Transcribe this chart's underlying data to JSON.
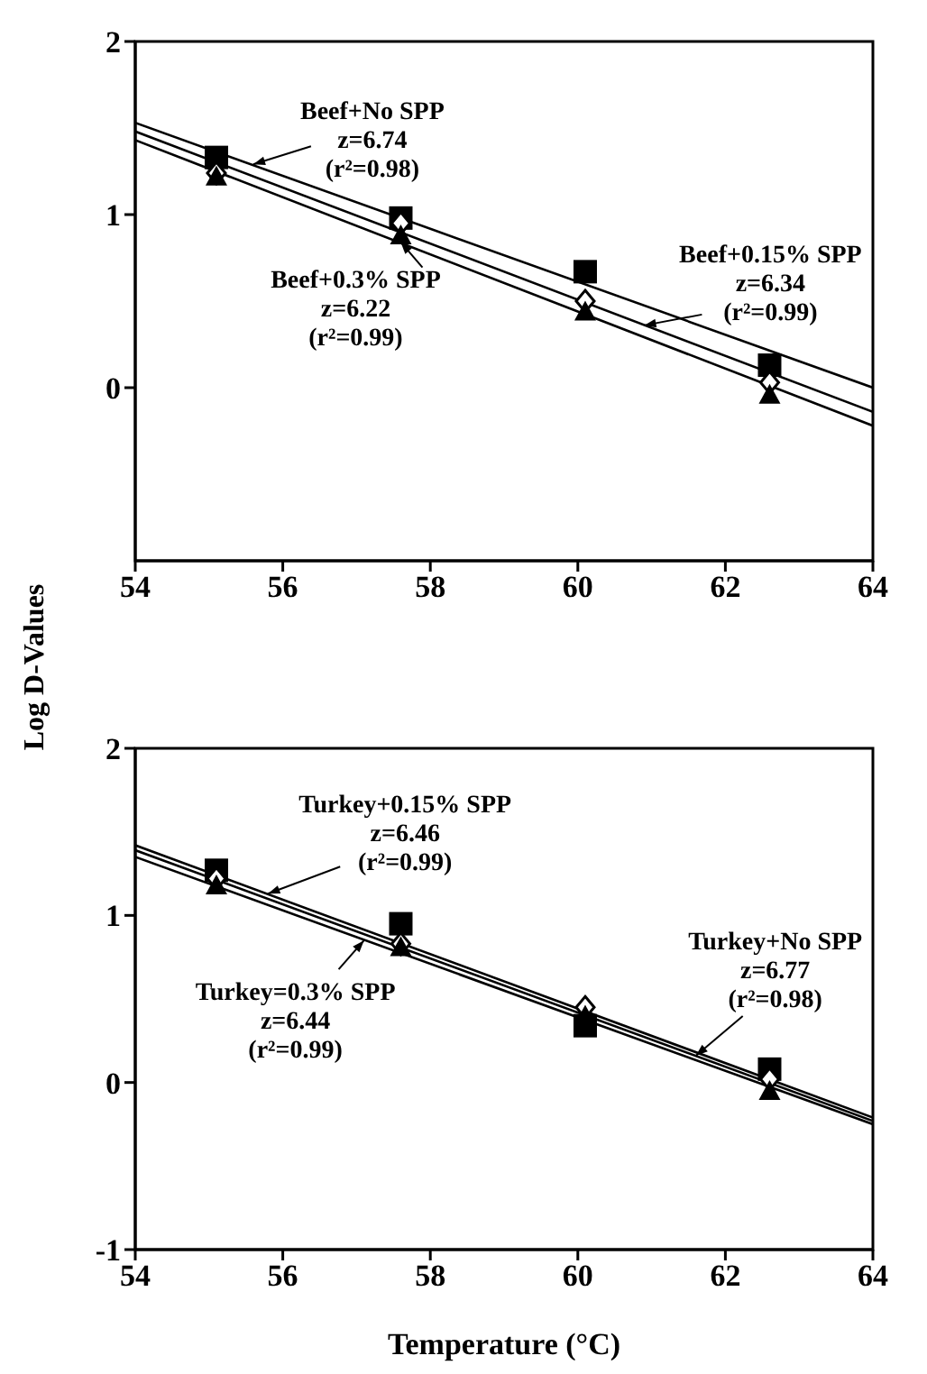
{
  "chart_data": [
    {
      "type": "scatter",
      "ylabel": "Log D-Values",
      "xlim": [
        54,
        64
      ],
      "xticks": [
        54,
        56,
        58,
        60,
        62,
        64
      ],
      "ylim": [
        -1,
        2
      ],
      "yticks": [
        0,
        1,
        2
      ],
      "series": [
        {
          "type": "scatter",
          "marker": "square",
          "color": "#000000",
          "x": [
            55.1,
            57.6,
            60.1,
            62.6
          ],
          "values": [
            1.33,
            0.98,
            0.67,
            0.13
          ]
        },
        {
          "type": "scatter",
          "marker": "diamond",
          "color": "#000000",
          "x": [
            55.1,
            57.6,
            60.1,
            62.6
          ],
          "values": [
            1.24,
            0.95,
            0.5,
            0.03
          ]
        },
        {
          "type": "scatter",
          "marker": "triangle",
          "color": "#000000",
          "x": [
            55.1,
            57.6,
            60.1,
            62.6
          ],
          "values": [
            1.22,
            0.88,
            0.44,
            -0.04
          ]
        },
        {
          "type": "line",
          "marker": "none",
          "color": "#000000",
          "x": [
            54,
            64
          ],
          "values": [
            1.53,
            0.0
          ]
        },
        {
          "type": "line",
          "marker": "none",
          "color": "#000000",
          "x": [
            54,
            64
          ],
          "values": [
            1.48,
            -0.14
          ]
        },
        {
          "type": "line",
          "marker": "none",
          "color": "#000000",
          "x": [
            54,
            64
          ],
          "values": [
            1.43,
            -0.22
          ]
        }
      ],
      "annotations": [
        {
          "text": "Beef+No SPP\nz=6.74\n(r²=0.98)",
          "x": 55.6,
          "y": 1.29
        },
        {
          "text": "Beef+0.3% SPP\nz=6.22\n(r²=0.99)",
          "x": 57.6,
          "y": 0.84
        },
        {
          "text": "Beef+0.15% SPP\nz=6.34\n(r²=0.99)",
          "x": 60.9,
          "y": 0.36
        }
      ]
    },
    {
      "type": "scatter",
      "xlabel": "Temperature (°C)",
      "xlim": [
        54,
        64
      ],
      "xticks": [
        54,
        56,
        58,
        60,
        62,
        64
      ],
      "ylim": [
        -1,
        2
      ],
      "yticks": [
        -1,
        0,
        1,
        2
      ],
      "series": [
        {
          "type": "scatter",
          "marker": "square",
          "color": "#000000",
          "x": [
            55.1,
            57.6,
            60.1,
            62.6
          ],
          "values": [
            1.27,
            0.95,
            0.34,
            0.08
          ]
        },
        {
          "type": "scatter",
          "marker": "diamond",
          "color": "#000000",
          "x": [
            55.1,
            57.6,
            60.1,
            62.6
          ],
          "values": [
            1.22,
            0.83,
            0.45,
            0.02
          ]
        },
        {
          "type": "scatter",
          "marker": "triangle",
          "color": "#000000",
          "x": [
            55.1,
            57.6,
            60.1,
            62.6
          ],
          "values": [
            1.18,
            0.81,
            0.4,
            -0.05
          ]
        },
        {
          "type": "line",
          "marker": "none",
          "color": "#000000",
          "x": [
            54,
            64
          ],
          "values": [
            1.42,
            -0.21
          ]
        },
        {
          "type": "line",
          "marker": "none",
          "color": "#000000",
          "x": [
            54,
            64
          ],
          "values": [
            1.39,
            -0.23
          ]
        },
        {
          "type": "line",
          "marker": "none",
          "color": "#000000",
          "x": [
            54,
            64
          ],
          "values": [
            1.35,
            -0.25
          ]
        }
      ],
      "annotations": [
        {
          "text": "Turkey+0.15% SPP\nz=6.46\n(r²=0.99)",
          "x": 55.8,
          "y": 1.13
        },
        {
          "text": "Turkey=0.3% SPP\nz=6.44\n(r²=0.99)",
          "x": 57.1,
          "y": 0.85
        },
        {
          "text": "Turkey+No SPP\nz=6.77\n(r²=0.98)",
          "x": 61.6,
          "y": 0.16
        }
      ]
    }
  ]
}
